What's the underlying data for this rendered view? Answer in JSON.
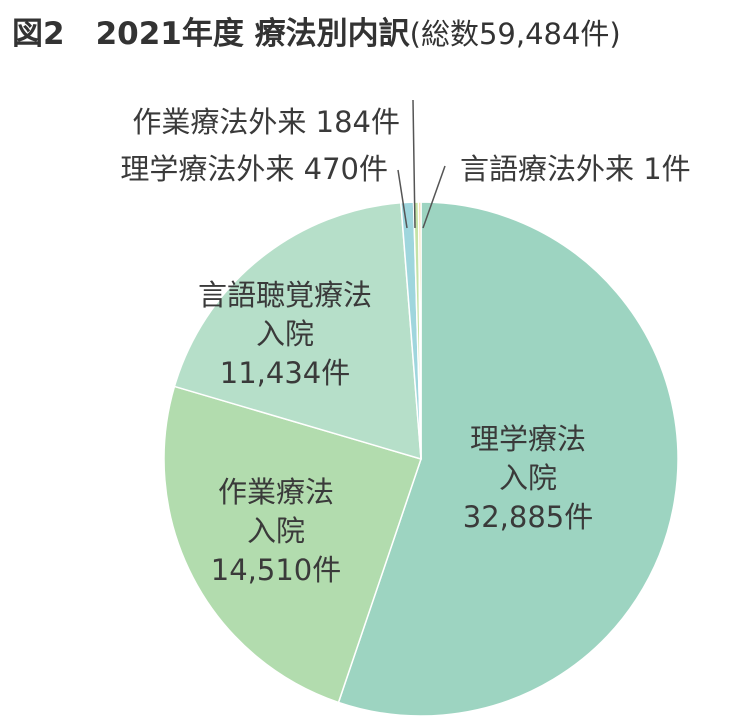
{
  "title": {
    "main": "図2　2021年度 療法別内訳",
    "sub": "(総数59,484件)"
  },
  "chart_data": {
    "type": "pie",
    "title": "図2　2021年度 療法別内訳(総数59,484件)",
    "total": 59484,
    "unit": "件",
    "slices": [
      {
        "label_lines": [
          "理学療法",
          "入院"
        ],
        "value": 32885,
        "value_text": "32,885件",
        "color": "#9dd4c1"
      },
      {
        "label_lines": [
          "作業療法",
          "入院"
        ],
        "value": 14510,
        "value_text": "14,510件",
        "color": "#b2dcae"
      },
      {
        "label_lines": [
          "言語聴覚療法",
          "入院"
        ],
        "value": 11434,
        "value_text": "11,434件",
        "color": "#b6dfc9"
      },
      {
        "label_lines": [
          "理学療法外来"
        ],
        "value": 470,
        "value_text": "470件",
        "color": "#9fd6dd"
      },
      {
        "label_lines": [
          "作業療法外来"
        ],
        "value": 184,
        "value_text": "184件",
        "color": "#c4e3a7"
      },
      {
        "label_lines": [
          "言語療法外来"
        ],
        "value": 1,
        "value_text": "1件",
        "color": "#f2cf8f"
      }
    ]
  }
}
